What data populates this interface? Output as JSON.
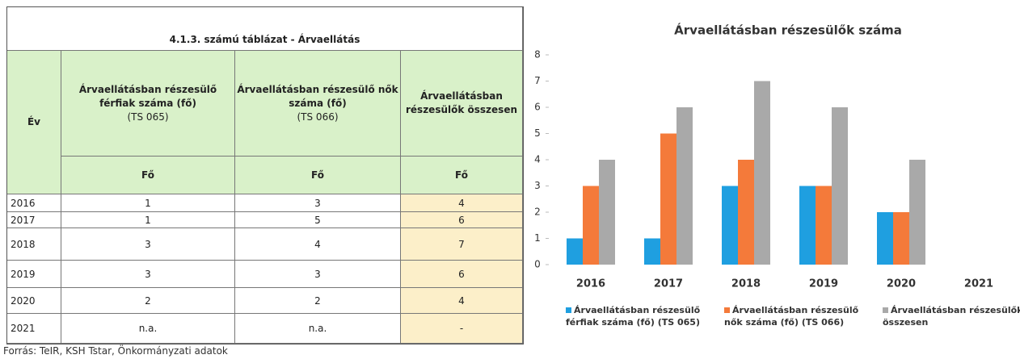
{
  "table": {
    "title": "4.1.3. számú táblázat - Árvaellátás",
    "headers": [
      {
        "text": "Év"
      },
      {
        "text": "Árvaellátásban részesülő férfiak száma (fő)",
        "code": "(TS 065)"
      },
      {
        "text": "Árvaellátásban részesülő nők száma (fő)",
        "code": "(TS 066)"
      },
      {
        "text": "Árvaellátásban részesülők összesen"
      }
    ],
    "units": [
      "Fő",
      "Fő",
      "Fő"
    ],
    "rows": [
      [
        "2016",
        "1",
        "3",
        "4"
      ],
      [
        "2017",
        "1",
        "5",
        "6"
      ],
      [
        "2018",
        "3",
        "4",
        "7"
      ],
      [
        "2019",
        "3",
        "3",
        "6"
      ],
      [
        "2020",
        "2",
        "2",
        "4"
      ],
      [
        "2021",
        "n.a.",
        "n.a.",
        "-"
      ]
    ],
    "source": "Forrás: TeIR, KSH Tstar, Önkormányzati adatok"
  },
  "chart_data": {
    "type": "bar",
    "title": "Árvaellátásban részesülők száma",
    "categories": [
      "2016",
      "2017",
      "2018",
      "2019",
      "2020",
      "2021"
    ],
    "series": [
      {
        "name": "Árvaellátásban részesülő férfiak száma (fő) (TS 065)",
        "color": "#1f9fe0",
        "values": [
          1,
          1,
          3,
          3,
          2,
          null
        ]
      },
      {
        "name": "Árvaellátásban részesülő nők száma (fő) (TS 066)",
        "color": "#f47a3a",
        "values": [
          3,
          5,
          4,
          3,
          2,
          null
        ]
      },
      {
        "name": "Árvaellátásban részesülők összesen",
        "color": "#a9a9a9",
        "values": [
          4,
          6,
          7,
          6,
          4,
          null
        ]
      }
    ],
    "ylim": [
      0,
      8
    ],
    "yticks": [
      0,
      1,
      2,
      3,
      4,
      5,
      6,
      7,
      8
    ],
    "legend": "bottom"
  }
}
